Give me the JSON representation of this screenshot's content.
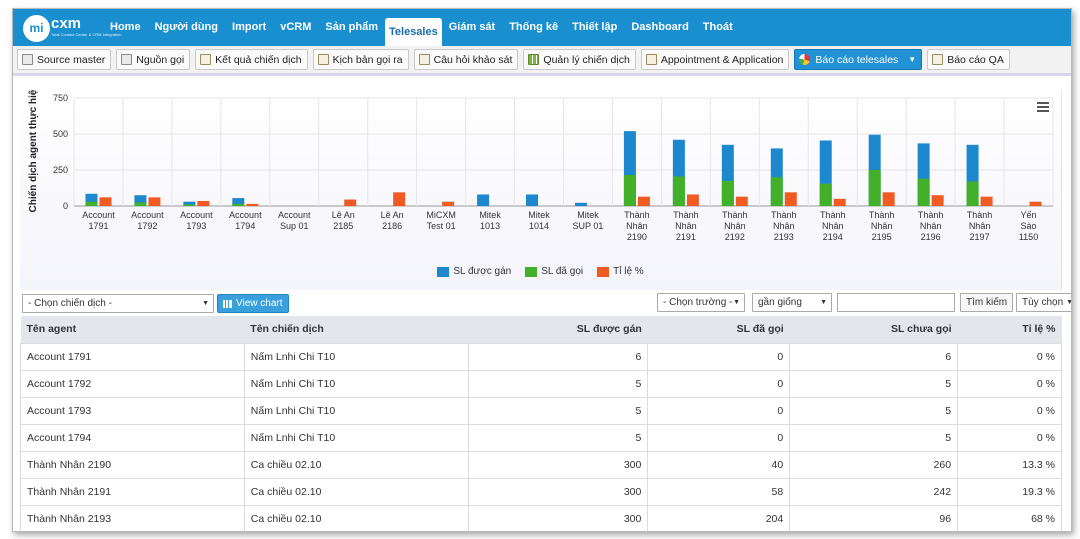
{
  "app": {
    "logo_text": "micxm",
    "logo_subtitle": "Total Contact Center & CRM Integration"
  },
  "nav": [
    {
      "label": "Home"
    },
    {
      "label": "Người dùng"
    },
    {
      "label": "Import"
    },
    {
      "label": "vCRM"
    },
    {
      "label": "Sản phẩm"
    },
    {
      "label": "Telesales",
      "active": true
    },
    {
      "label": "Giám sát"
    },
    {
      "label": "Thống kê"
    },
    {
      "label": "Thiết lập"
    },
    {
      "label": "Dashboard"
    },
    {
      "label": "Thoát"
    }
  ],
  "toolbar": [
    {
      "label": "Source master",
      "icon": "table-icon"
    },
    {
      "label": "Nguồn gọi",
      "icon": "table-icon"
    },
    {
      "label": "Kết quả chiến dịch",
      "icon": "document-edit-icon"
    },
    {
      "label": "Kịch bản gọi ra",
      "icon": "document-edit-icon"
    },
    {
      "label": "Câu hỏi khảo sát",
      "icon": "document-edit-icon"
    },
    {
      "label": "Quản lý chiến dịch",
      "icon": "grid-icon"
    },
    {
      "label": "Appointment & Application",
      "icon": "document-icon"
    },
    {
      "label": "Báo cáo telesales",
      "icon": "pie-chart-icon",
      "active": true
    },
    {
      "label": "Báo cáo QA",
      "icon": "document-icon"
    }
  ],
  "chart_data": {
    "type": "bar",
    "ylabel": "Chiến dịch agent thực hiện",
    "ylim": [
      0,
      750
    ],
    "yticks": [
      0,
      250,
      500,
      750
    ],
    "categories": [
      [
        "Account",
        "1791"
      ],
      [
        "Account",
        "1792"
      ],
      [
        "Account",
        "1793"
      ],
      [
        "Account",
        "1794"
      ],
      [
        "Account",
        "Sup 01"
      ],
      [
        "Lê An",
        "2185"
      ],
      [
        "Lê An",
        "2186"
      ],
      [
        "MiCXM",
        "Test 01"
      ],
      [
        "Mitek",
        "1013"
      ],
      [
        "Mitek",
        "1014"
      ],
      [
        "Mitek",
        "SUP 01"
      ],
      [
        "Thành",
        "Nhân",
        "2190"
      ],
      [
        "Thành",
        "Nhân",
        "2191"
      ],
      [
        "Thành",
        "Nhân",
        "2192"
      ],
      [
        "Thành",
        "Nhân",
        "2193"
      ],
      [
        "Thành",
        "Nhân",
        "2194"
      ],
      [
        "Thành",
        "Nhân",
        "2195"
      ],
      [
        "Thành",
        "Nhân",
        "2196"
      ],
      [
        "Thành",
        "Nhân",
        "2197"
      ],
      [
        "Yến",
        "Sào",
        "1150"
      ]
    ],
    "series": [
      {
        "name": "SL được gán",
        "color": "#1e88cf",
        "values": [
          85,
          75,
          30,
          55,
          0,
          0,
          0,
          0,
          80,
          80,
          22,
          520,
          460,
          425,
          400,
          455,
          495,
          435,
          425,
          0
        ]
      },
      {
        "name": "SL đã gọi",
        "color": "#43b02a",
        "values": [
          30,
          25,
          10,
          15,
          0,
          0,
          0,
          0,
          0,
          0,
          0,
          215,
          205,
          175,
          200,
          155,
          250,
          190,
          170,
          0
        ]
      },
      {
        "name": "Tỉ lệ %",
        "color": "#f05a23",
        "values": [
          60,
          60,
          35,
          15,
          0,
          45,
          95,
          30,
          0,
          0,
          0,
          65,
          80,
          65,
          95,
          50,
          95,
          75,
          65,
          30
        ]
      }
    ],
    "legend_position": "bottom-center"
  },
  "filters": {
    "campaign_select": "- Chọn chiến dịch -",
    "view_chart_label": "View chart",
    "field_select": "- Chọn trường -",
    "match_select": "gần giống",
    "search_value": "",
    "search_button": "Tìm kiếm",
    "option_select": "Tùy chọn"
  },
  "table": {
    "headers": [
      "Tên agent",
      "Tên chiến dịch",
      "SL được gán",
      "SL đã gọi",
      "SL chưa gọi",
      "Tỉ lệ %"
    ],
    "rows": [
      [
        "Account 1791",
        "Nấm Lnhi Chi T10",
        "6",
        "0",
        "6",
        "0 %"
      ],
      [
        "Account 1792",
        "Nấm Lnhi Chi T10",
        "5",
        "0",
        "5",
        "0 %"
      ],
      [
        "Account 1793",
        "Nấm Lnhi Chi T10",
        "5",
        "0",
        "5",
        "0 %"
      ],
      [
        "Account 1794",
        "Nấm Lnhi Chi T10",
        "5",
        "0",
        "5",
        "0 %"
      ],
      [
        "Thành Nhân 2190",
        "Ca chiều 02.10",
        "300",
        "40",
        "260",
        "13.3 %"
      ],
      [
        "Thành Nhân 2191",
        "Ca chiều 02.10",
        "300",
        "58",
        "242",
        "19.3 %"
      ],
      [
        "Thành Nhân 2193",
        "Ca chiều 02.10",
        "300",
        "204",
        "96",
        "68 %"
      ]
    ]
  }
}
